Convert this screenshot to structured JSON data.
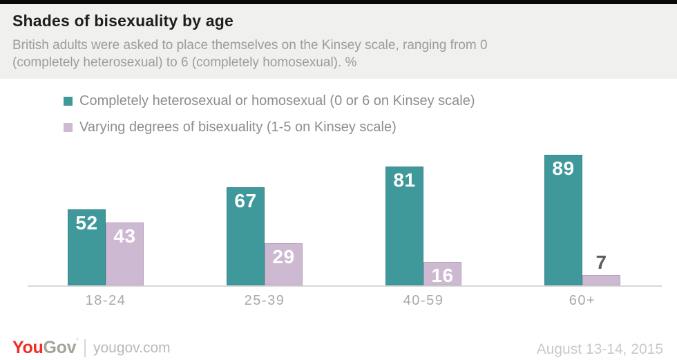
{
  "header": {
    "title": "Shades of bisexuality by age",
    "subtitle_lines": [
      "British adults were asked to place themselves on the Kinsey scale, ranging from 0",
      "(completely heterosexual) to 6 (completely homosexual). %"
    ]
  },
  "chart_data": {
    "type": "bar",
    "title": "Shades of bisexuality by age",
    "categories": [
      "18-24",
      "25-39",
      "40-59",
      "60+"
    ],
    "series": [
      {
        "name": "Completely heterosexual or homosexual (0 or 6 on Kinsey scale)",
        "color": "#3f999b",
        "values": [
          52,
          67,
          81,
          89
        ]
      },
      {
        "name": "Varying degrees of bisexuality (1-5 on Kinsey scale)",
        "color": "#cdb9d2",
        "values": [
          43,
          29,
          16,
          7
        ]
      }
    ],
    "value_labels": true,
    "unit": "%",
    "ylim": [
      0,
      100
    ],
    "grid": false,
    "legend_position": "top-left"
  },
  "footer": {
    "brand_you": "You",
    "brand_gov": "Gov",
    "brand_mark": "’",
    "site": "yougov.com",
    "date": "August 13-14, 2015"
  },
  "colors": {
    "accent_teal": "#3f999b",
    "accent_lilac": "#cdb9d2",
    "brand_red": "#ee2e24",
    "header_bg": "#f0f0ee",
    "axis_line": "#d8d8d8",
    "text_dark": "#1e1e1e",
    "text_gray": "#9c9c9c"
  }
}
